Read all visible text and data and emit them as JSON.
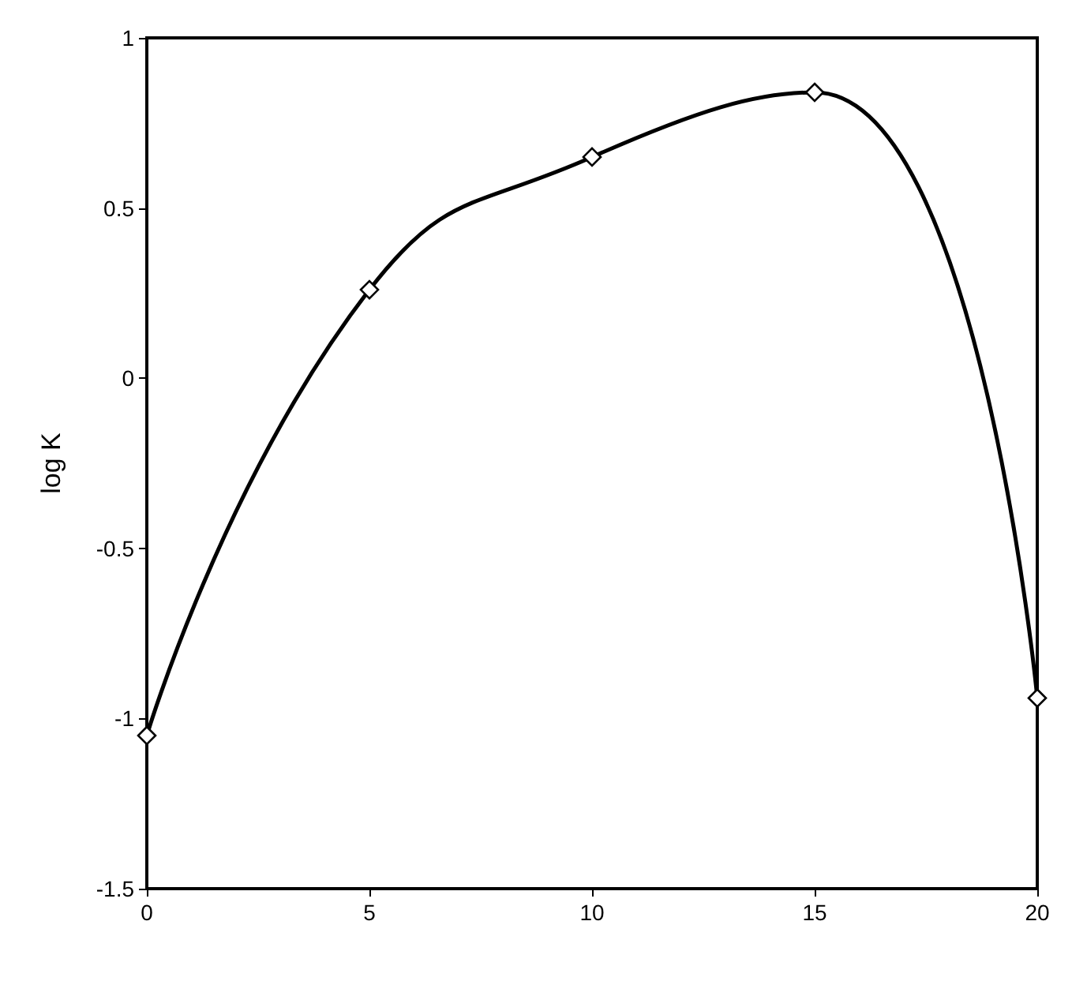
{
  "chart_data": {
    "type": "line",
    "ylabel": "log K",
    "x": [
      0,
      5,
      10,
      15,
      20
    ],
    "series": [
      {
        "color": "#000000",
        "values": [
          -1.05,
          0.26,
          0.65,
          0.84,
          -0.94
        ]
      }
    ],
    "xlim": [
      0,
      20
    ],
    "xticks": [
      0,
      5,
      10,
      15,
      20
    ],
    "ylim": [
      -1.5,
      1
    ],
    "yticks": [
      -1.5,
      -1,
      -0.5,
      0,
      0.5,
      1
    ],
    "marker": "diamond",
    "line_style": "solid",
    "grid": false
  }
}
